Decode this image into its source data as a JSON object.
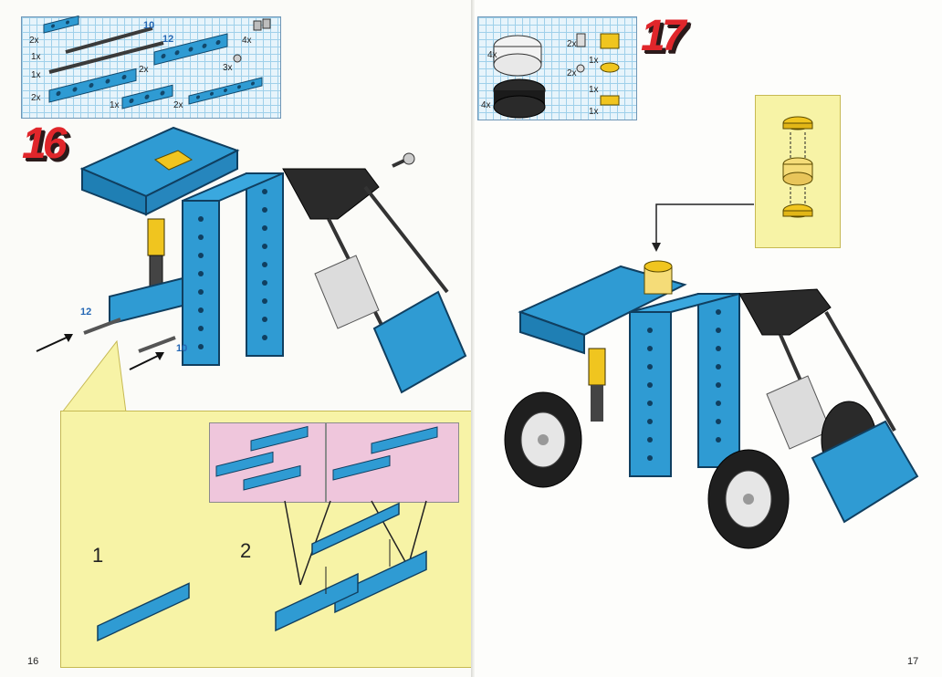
{
  "left_page": {
    "step_number": "16",
    "page_number": "16",
    "parts": [
      {
        "qty": "2x",
        "name": "beam-2"
      },
      {
        "qty": "1x",
        "name": "axle-10",
        "length": "10"
      },
      {
        "qty": "1x",
        "name": "axle-12",
        "length": "12"
      },
      {
        "qty": "2x",
        "name": "beam-12",
        "length": "12"
      },
      {
        "qty": "4x",
        "name": "pin-connector"
      },
      {
        "qty": "2x",
        "name": "beam-8"
      },
      {
        "qty": "3x",
        "name": "bush"
      },
      {
        "qty": "2x",
        "name": "plate-beam"
      },
      {
        "qty": "1x",
        "name": "beam-6"
      },
      {
        "qty": "2x",
        "name": "plate-long"
      }
    ],
    "axle_labels": [
      "12",
      "10"
    ],
    "sub_steps": [
      "1",
      "2"
    ]
  },
  "right_page": {
    "step_number": "17",
    "page_number": "17",
    "parts": [
      {
        "qty": "4x",
        "name": "wheel-hub"
      },
      {
        "qty": "2x",
        "name": "pin"
      },
      {
        "qty": "1x",
        "name": "yellow-round-brick"
      },
      {
        "qty": "2x",
        "name": "bush"
      },
      {
        "qty": "1x",
        "name": "yellow-round-tile"
      },
      {
        "qty": "4x",
        "name": "tire"
      },
      {
        "qty": "1x",
        "name": "yellow-round-plate"
      }
    ]
  },
  "colors": {
    "brick_blue": "#2f9bd3",
    "grid_bg": "#e7f4fb",
    "callout_yellow": "#f7f3a6",
    "subpanel_pink": "#efc6dc",
    "step_red": "#e0262b",
    "label_blue": "#2467b4"
  }
}
